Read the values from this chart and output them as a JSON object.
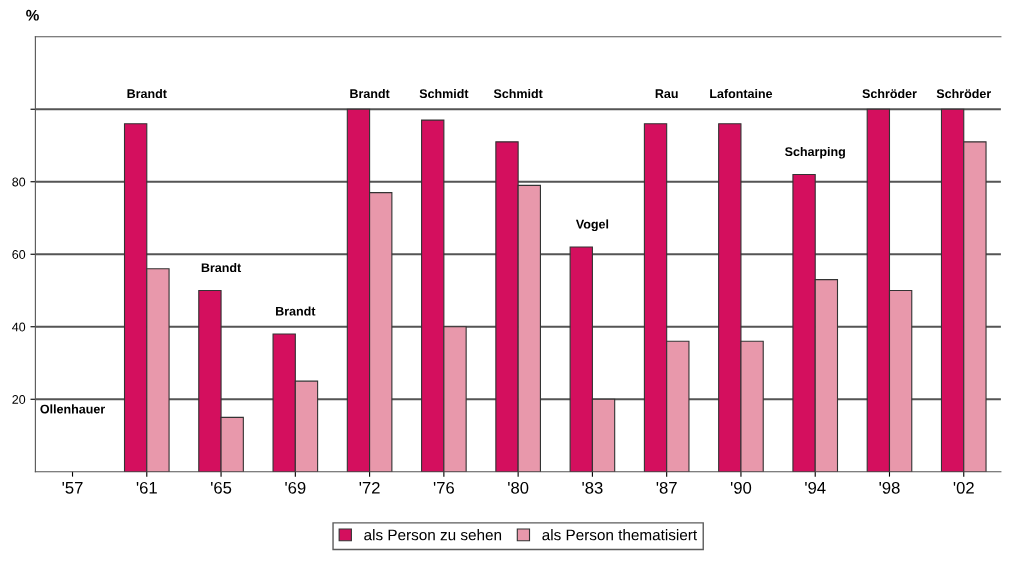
{
  "chart_data": {
    "type": "bar",
    "ylabel": "%",
    "categories": [
      "'57",
      "'61",
      "'65",
      "'69",
      "'72",
      "'76",
      "'80",
      "'83",
      "'87",
      "'90",
      "'94",
      "'98",
      "'02"
    ],
    "series": [
      {
        "name": "als Person zu sehen",
        "color": "#d40f5e",
        "values": [
          null,
          96,
          50,
          38,
          100,
          97,
          91,
          62,
          96,
          96,
          82,
          100,
          100
        ]
      },
      {
        "name": "als Person thematisiert",
        "color": "#e898ab",
        "values": [
          null,
          56,
          15,
          25,
          77,
          40,
          79,
          20,
          36,
          36,
          53,
          50,
          91
        ]
      }
    ],
    "ylim": [
      0,
      120
    ],
    "yticks": [
      20,
      40,
      60,
      80,
      {
        "value": 100,
        "label": null
      }
    ],
    "grid": "y",
    "legend": "bottom",
    "annotations": [
      "Ollenhauer",
      "Brandt",
      "Brandt",
      "Brandt",
      "Brandt",
      "Schmidt",
      "Schmidt",
      "Vogel",
      "Rau",
      "Lafontaine",
      "Scharping",
      "Schröder",
      "Schröder"
    ]
  }
}
